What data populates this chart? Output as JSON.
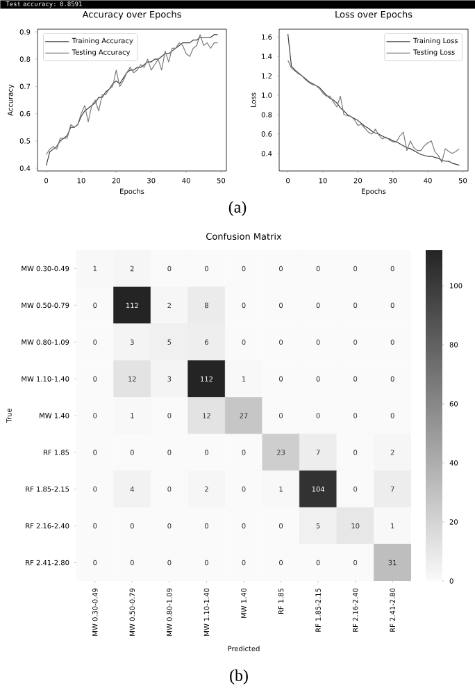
{
  "chart_data": [
    {
      "type": "line",
      "title": "Accuracy over Epochs",
      "xlabel": "Epochs",
      "ylabel": "Accuracy",
      "annotations": [
        "Test accuracy: 0.8591",
        "(a)"
      ],
      "legend": "top left",
      "x": [
        0,
        1,
        2,
        3,
        4,
        5,
        6,
        7,
        8,
        9,
        10,
        11,
        12,
        13,
        14,
        15,
        16,
        17,
        18,
        19,
        20,
        21,
        22,
        23,
        24,
        25,
        26,
        27,
        28,
        29,
        30,
        31,
        32,
        33,
        34,
        35,
        36,
        37,
        38,
        39,
        40,
        41,
        42,
        43,
        44,
        45,
        46,
        47,
        48,
        49
      ],
      "xlim": [
        -2.5,
        51.5
      ],
      "xticks": [
        0,
        10,
        20,
        30,
        40,
        50
      ],
      "ylim": [
        0.39,
        0.91
      ],
      "yticks": [
        0.4,
        0.5,
        0.6,
        0.7,
        0.8,
        0.9
      ],
      "series": [
        {
          "name": "Training Accuracy",
          "color": "#3a3a3a",
          "values": [
            0.41,
            0.46,
            0.47,
            0.48,
            0.5,
            0.51,
            0.52,
            0.55,
            0.55,
            0.56,
            0.59,
            0.61,
            0.62,
            0.63,
            0.64,
            0.66,
            0.66,
            0.68,
            0.69,
            0.71,
            0.72,
            0.71,
            0.73,
            0.75,
            0.76,
            0.76,
            0.77,
            0.77,
            0.78,
            0.79,
            0.79,
            0.8,
            0.8,
            0.81,
            0.82,
            0.82,
            0.83,
            0.84,
            0.85,
            0.86,
            0.86,
            0.86,
            0.87,
            0.87,
            0.88,
            0.88,
            0.88,
            0.88,
            0.89,
            0.89
          ]
        },
        {
          "name": "Testing Accuracy",
          "color": "#7a7a7a",
          "values": [
            0.45,
            0.47,
            0.48,
            0.47,
            0.51,
            0.51,
            0.51,
            0.56,
            0.55,
            0.56,
            0.6,
            0.63,
            0.57,
            0.63,
            0.65,
            0.61,
            0.67,
            0.67,
            0.69,
            0.7,
            0.76,
            0.7,
            0.72,
            0.75,
            0.77,
            0.75,
            0.76,
            0.78,
            0.77,
            0.8,
            0.76,
            0.78,
            0.8,
            0.76,
            0.83,
            0.79,
            0.84,
            0.84,
            0.86,
            0.85,
            0.82,
            0.81,
            0.84,
            0.85,
            0.89,
            0.85,
            0.86,
            0.84,
            0.86,
            0.86
          ]
        }
      ]
    },
    {
      "type": "line",
      "title": "Loss over Epochs",
      "xlabel": "Epochs",
      "ylabel": "Loss",
      "legend": "top right",
      "x": [
        0,
        1,
        2,
        3,
        4,
        5,
        6,
        7,
        8,
        9,
        10,
        11,
        12,
        13,
        14,
        15,
        16,
        17,
        18,
        19,
        20,
        21,
        22,
        23,
        24,
        25,
        26,
        27,
        28,
        29,
        30,
        31,
        32,
        33,
        34,
        35,
        36,
        37,
        38,
        39,
        40,
        41,
        42,
        43,
        44,
        45,
        46,
        47,
        48,
        49
      ],
      "xlim": [
        -2.5,
        51.5
      ],
      "xticks": [
        0,
        10,
        20,
        30,
        40,
        50
      ],
      "ylim": [
        0.22,
        1.68
      ],
      "yticks": [
        0.4,
        0.6,
        0.8,
        {
          "value": 1.0,
          "label": "1.0"
        },
        1.2,
        1.4,
        1.6
      ],
      "series": [
        {
          "name": "Training Loss",
          "color": "#3a3a3a",
          "values": [
            1.63,
            1.3,
            1.26,
            1.23,
            1.2,
            1.17,
            1.14,
            1.12,
            1.1,
            1.08,
            1.04,
            1.0,
            0.97,
            0.95,
            0.92,
            0.87,
            0.84,
            0.8,
            0.78,
            0.76,
            0.74,
            0.71,
            0.68,
            0.66,
            0.63,
            0.61,
            0.6,
            0.58,
            0.56,
            0.55,
            0.53,
            0.52,
            0.5,
            0.48,
            0.46,
            0.45,
            0.43,
            0.41,
            0.39,
            0.38,
            0.37,
            0.37,
            0.36,
            0.35,
            0.33,
            0.32,
            0.32,
            0.3,
            0.29,
            0.28
          ]
        },
        {
          "name": "Testing Loss",
          "color": "#7a7a7a",
          "values": [
            1.36,
            1.28,
            1.25,
            1.22,
            1.2,
            1.16,
            1.13,
            1.11,
            1.1,
            1.07,
            1.02,
            0.99,
            0.99,
            0.93,
            0.88,
            0.99,
            0.8,
            0.79,
            0.78,
            0.75,
            0.69,
            0.7,
            0.66,
            0.62,
            0.6,
            0.65,
            0.59,
            0.55,
            0.57,
            0.54,
            0.52,
            0.52,
            0.58,
            0.62,
            0.43,
            0.53,
            0.46,
            0.43,
            0.43,
            0.48,
            0.51,
            0.53,
            0.42,
            0.38,
            0.31,
            0.45,
            0.42,
            0.4,
            0.42,
            0.45
          ]
        }
      ]
    },
    {
      "type": "heatmap",
      "title": "Confusion Matrix",
      "xlabel": "Predicted",
      "ylabel": "True",
      "annotations": [
        "(b)"
      ],
      "data_labels": true,
      "categories": [
        "MW 0.30-0.49",
        "MW 0.50-0.79",
        "MW 0.80-1.09",
        "MW 1.10-1.40",
        "MW 1.40",
        "RF 1.85",
        "RF 1.85-2.15",
        "RF 2.16-2.40",
        "RF 2.41-2.80"
      ],
      "y_categories": [
        "MW 0.30-0.49",
        "MW 0.50-0.79",
        "MW 0.80-1.09",
        "MW 1.10-1.40",
        "MW 1.40",
        "RF 1.85",
        "RF 1.85-2.15",
        "RF 2.16-2.40",
        "RF 2.41-2.80"
      ],
      "cells": [
        [
          1,
          2,
          0,
          0,
          0,
          0,
          0,
          0,
          0
        ],
        [
          0,
          112,
          2,
          8,
          0,
          0,
          0,
          0,
          0
        ],
        [
          0,
          3,
          5,
          6,
          0,
          0,
          0,
          0,
          0
        ],
        [
          0,
          12,
          3,
          112,
          1,
          0,
          0,
          0,
          0
        ],
        [
          0,
          1,
          0,
          12,
          27,
          0,
          0,
          0,
          0
        ],
        [
          0,
          0,
          0,
          0,
          0,
          23,
          7,
          0,
          2
        ],
        [
          0,
          4,
          0,
          2,
          0,
          1,
          104,
          0,
          7
        ],
        [
          0,
          0,
          0,
          0,
          0,
          0,
          5,
          10,
          1
        ],
        [
          0,
          0,
          0,
          0,
          0,
          0,
          0,
          0,
          31
        ]
      ],
      "clim": [
        0,
        112
      ],
      "cticks": [
        0,
        20,
        40,
        60,
        80,
        100
      ]
    }
  ]
}
